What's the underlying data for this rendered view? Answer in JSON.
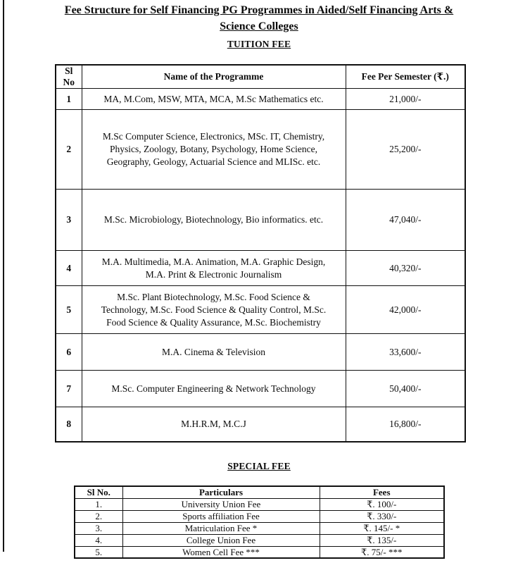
{
  "page": {
    "title_lines": [
      "Fee Structure for Self Financing PG Programmes in Aided/Self Financing Arts &",
      "Science Colleges"
    ]
  },
  "tuition": {
    "heading": "TUITION FEE",
    "columns": [
      "Sl No",
      "Name of the Programme",
      "Fee Per Semester (₹.)"
    ],
    "rows": [
      {
        "sl": "1",
        "name": "MA, M.Com, MSW, MTA, MCA, M.Sc Mathematics etc.",
        "fee": "21,000/-"
      },
      {
        "sl": "2",
        "name": "M.Sc Computer Science, Electronics, MSc. IT, Chemistry, Physics, Zoology, Botany, Psychology, Home Science, Geography, Geology, Actuarial Science and MLISc. etc.",
        "fee": "25,200/-"
      },
      {
        "sl": "3",
        "name": "M.Sc. Microbiology, Biotechnology, Bio informatics. etc.",
        "fee": "47,040/-"
      },
      {
        "sl": "4",
        "name": "M.A. Multimedia, M.A. Animation, M.A. Graphic Design, M.A. Print & Electronic Journalism",
        "fee": "40,320/-"
      },
      {
        "sl": "5",
        "name": "M.Sc. Plant Biotechnology, M.Sc. Food Science & Technology, M.Sc. Food Science & Quality Control, M.Sc. Food Science & Quality Assurance, M.Sc. Biochemistry",
        "fee": "42,000/-"
      },
      {
        "sl": "6",
        "name": "M.A. Cinema & Television",
        "fee": "33,600/-"
      },
      {
        "sl": "7",
        "name": "M.Sc. Computer Engineering & Network Technology",
        "fee": "50,400/-"
      },
      {
        "sl": "8",
        "name": "M.H.R.M, M.C.J",
        "fee": "16,800/-"
      }
    ]
  },
  "special": {
    "heading": "SPECIAL FEE",
    "columns": [
      "Sl No.",
      "Particulars",
      "Fees"
    ],
    "rows": [
      {
        "sl": "1.",
        "particulars": "University Union Fee",
        "fee": "₹. 100/-"
      },
      {
        "sl": "2.",
        "particulars": "Sports affiliation Fee",
        "fee": "₹. 330/-"
      },
      {
        "sl": "3.",
        "particulars": "Matriculation Fee *",
        "fee": "₹. 145/- *"
      },
      {
        "sl": "4.",
        "particulars": "College Union Fee",
        "fee": "₹. 135/-"
      },
      {
        "sl": "5.",
        "particulars": "Women Cell Fee ***",
        "fee": "₹. 75/- ***"
      }
    ]
  }
}
